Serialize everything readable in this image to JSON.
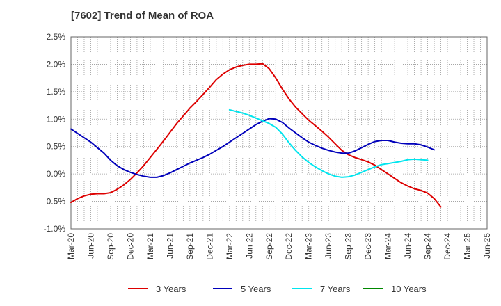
{
  "chart_data": {
    "type": "line",
    "title": "[7602]  Trend of Mean of ROA",
    "xlabel": "",
    "ylabel": "",
    "ylim": [
      -1.0,
      2.5
    ],
    "yticks": [
      -1.0,
      -0.5,
      0.0,
      0.5,
      1.0,
      1.5,
      2.0,
      2.5
    ],
    "ytick_labels": [
      "-1.0%",
      "-0.5%",
      "0.0%",
      "0.5%",
      "1.0%",
      "1.5%",
      "2.0%",
      "2.5%"
    ],
    "x_tick_labels": [
      "Mar-20",
      "Jun-20",
      "Sep-20",
      "Dec-20",
      "Mar-21",
      "Jun-21",
      "Sep-21",
      "Dec-21",
      "Mar-22",
      "Jun-22",
      "Sep-22",
      "Dec-22",
      "Mar-23",
      "Jun-23",
      "Sep-23",
      "Dec-23",
      "Mar-24",
      "Jun-24",
      "Sep-24",
      "Dec-24",
      "Mar-25",
      "Jun-25"
    ],
    "grid": true,
    "legend_position": "bottom",
    "series": [
      {
        "name": "3 Years",
        "color": "#dd0000",
        "values": [
          -0.52,
          -0.45,
          -0.4,
          -0.37,
          -0.36,
          -0.36,
          -0.34,
          -0.28,
          -0.2,
          -0.1,
          0.02,
          0.15,
          0.3,
          0.45,
          0.6,
          0.76,
          0.92,
          1.06,
          1.2,
          1.32,
          1.45,
          1.58,
          1.72,
          1.82,
          1.9,
          1.95,
          1.98,
          2.0,
          2.0,
          2.01,
          1.92,
          1.75,
          1.55,
          1.37,
          1.22,
          1.1,
          0.98,
          0.88,
          0.78,
          0.67,
          0.55,
          0.43,
          0.35,
          0.3,
          0.26,
          0.22,
          0.16,
          0.08,
          0.0,
          -0.08,
          -0.16,
          -0.22,
          -0.27,
          -0.3,
          -0.35,
          -0.45,
          -0.6
        ]
      },
      {
        "name": "5 Years",
        "color": "#0000bb",
        "values": [
          0.82,
          0.74,
          0.66,
          0.58,
          0.48,
          0.38,
          0.25,
          0.15,
          0.08,
          0.03,
          -0.01,
          -0.04,
          -0.06,
          -0.06,
          -0.03,
          0.02,
          0.08,
          0.14,
          0.2,
          0.25,
          0.3,
          0.36,
          0.43,
          0.5,
          0.58,
          0.66,
          0.74,
          0.82,
          0.9,
          0.96,
          1.01,
          1.0,
          0.94,
          0.84,
          0.75,
          0.66,
          0.58,
          0.52,
          0.47,
          0.43,
          0.4,
          0.38,
          0.38,
          0.42,
          0.48,
          0.54,
          0.59,
          0.61,
          0.61,
          0.58,
          0.56,
          0.55,
          0.55,
          0.53,
          0.49,
          0.44
        ]
      },
      {
        "name": "7 Years",
        "color": "#00e5ee",
        "values": [
          null,
          null,
          null,
          null,
          null,
          null,
          null,
          null,
          null,
          null,
          null,
          null,
          null,
          null,
          null,
          null,
          null,
          null,
          null,
          null,
          null,
          null,
          null,
          null,
          1.17,
          1.14,
          1.11,
          1.07,
          1.02,
          0.97,
          0.92,
          0.85,
          0.73,
          0.57,
          0.43,
          0.31,
          0.21,
          0.13,
          0.06,
          0.0,
          -0.04,
          -0.06,
          -0.05,
          -0.02,
          0.03,
          0.08,
          0.13,
          0.17,
          0.19,
          0.21,
          0.23,
          0.26,
          0.27,
          0.26,
          0.25
        ]
      },
      {
        "name": "10 Years",
        "color": "#008800",
        "values": []
      }
    ]
  }
}
